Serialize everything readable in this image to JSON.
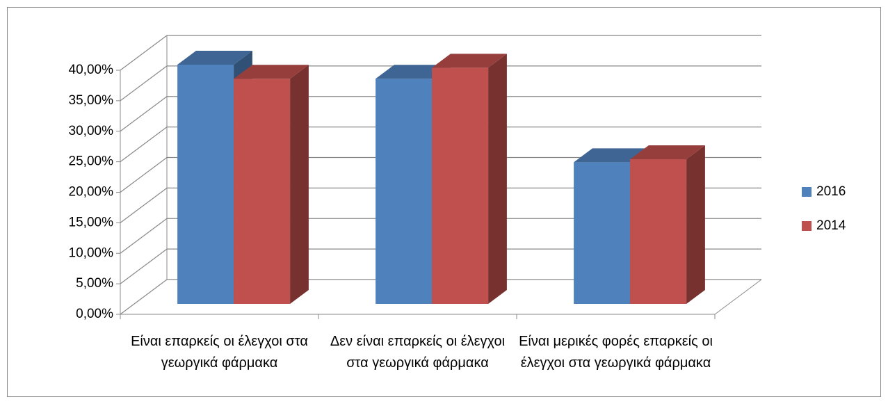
{
  "chart_data": {
    "type": "bar3d",
    "categories": [
      "Είναι επαρκείς οι έλεγχοι στα γεωργικά φάρμακα",
      "Δεν είναι επαρκείς οι έλεγχοι στα γεωργικά φάρμακα",
      "Είναι μερικές φορές επαρκείς οι έλεγχοι στα γεωργικά φάρμακα"
    ],
    "series": [
      {
        "name": "2016",
        "color": "#4f81bd",
        "values": [
          39.2,
          36.9,
          23.2
        ]
      },
      {
        "name": "2014",
        "color": "#c0504d",
        "values": [
          36.9,
          38.7,
          23.7
        ]
      }
    ],
    "ylim": [
      0,
      40
    ],
    "yticks": [
      {
        "value": 0,
        "label": "0,00%"
      },
      {
        "value": 5,
        "label": "5,00%"
      },
      {
        "value": 10,
        "label": "10,00%"
      },
      {
        "value": 15,
        "label": "15,00%"
      },
      {
        "value": 20,
        "label": "20,00%"
      },
      {
        "value": 25,
        "label": "25,00%"
      },
      {
        "value": 30,
        "label": "30,00%"
      },
      {
        "value": 35,
        "label": "35,00%"
      },
      {
        "value": 40,
        "label": "40,00%"
      }
    ],
    "grid": true,
    "legend": "right"
  }
}
